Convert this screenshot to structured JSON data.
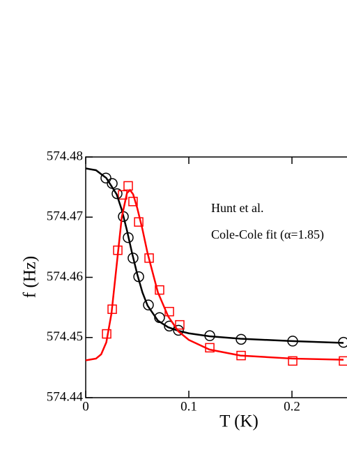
{
  "chart_data": {
    "type": "line",
    "x_label": "T (K)",
    "y_label": "f (Hz)",
    "annotations": [
      "Hunt et al.",
      "Cole-Cole fit (α=1.85)"
    ],
    "xlim": [
      0,
      0.25
    ],
    "ylim": [
      574.44,
      574.48
    ],
    "xticks": [
      0,
      0.1,
      0.2
    ],
    "yticks": [
      574.44,
      574.45,
      574.46,
      574.47,
      574.48
    ],
    "series": [
      {
        "color": "#000000",
        "marker": "circle",
        "x": [
          0.0196,
          0.0257,
          0.0304,
          0.0365,
          0.0412,
          0.0459,
          0.0514,
          0.0608,
          0.0716,
          0.0811,
          0.0899,
          0.1203,
          0.1507,
          0.2007,
          0.25
        ],
        "values": [
          574.4765,
          574.4756,
          574.4739,
          574.4701,
          574.4666,
          574.4632,
          574.4601,
          574.4554,
          574.4533,
          574.4519,
          574.4512,
          574.4503,
          574.4497,
          574.4494,
          574.4492
        ]
      },
      {
        "color": "#ff0000",
        "marker": "square",
        "x": [
          0.0203,
          0.0257,
          0.0311,
          0.0358,
          0.0412,
          0.0459,
          0.0514,
          0.0615,
          0.0716,
          0.0811,
          0.0912,
          0.1203,
          0.1507,
          0.2007,
          0.25
        ],
        "values": [
          574.4506,
          574.4547,
          574.4645,
          574.4737,
          574.4752,
          574.4726,
          574.4692,
          574.4632,
          574.4579,
          574.4543,
          574.4521,
          574.4483,
          574.447,
          574.4461,
          574.4461
        ]
      },
      {
        "color": "#000000",
        "marker": "none",
        "x": [
          0,
          0.01,
          0.02,
          0.03,
          0.035,
          0.04,
          0.045,
          0.05,
          0.055,
          0.06,
          0.07,
          0.08,
          0.09,
          0.1,
          0.12,
          0.15,
          0.2,
          0.25
        ],
        "values": [
          574.4781,
          574.4778,
          574.4765,
          574.4738,
          574.4712,
          574.4678,
          574.464,
          574.4605,
          574.4575,
          574.4553,
          574.4528,
          574.4517,
          574.4511,
          574.4507,
          574.4502,
          574.4498,
          574.4494,
          574.4491
        ]
      },
      {
        "color": "#ff0000",
        "marker": "none",
        "x": [
          0,
          0.01,
          0.015,
          0.02,
          0.025,
          0.03,
          0.035,
          0.04,
          0.043,
          0.046,
          0.05,
          0.055,
          0.06,
          0.07,
          0.08,
          0.09,
          0.1,
          0.12,
          0.15,
          0.2,
          0.25
        ],
        "values": [
          574.4462,
          574.4465,
          574.4472,
          574.4492,
          574.454,
          574.462,
          574.47,
          574.474,
          574.4745,
          574.4738,
          574.4715,
          574.468,
          574.464,
          574.4575,
          574.4535,
          574.451,
          574.4496,
          574.448,
          574.447,
          574.4465,
          574.4463
        ]
      }
    ]
  }
}
